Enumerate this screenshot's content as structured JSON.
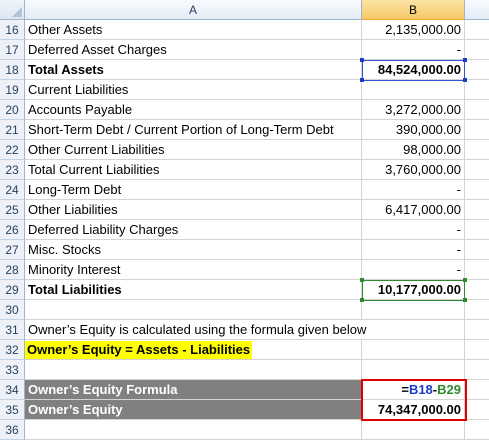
{
  "columns": {
    "a": "A",
    "b": "B"
  },
  "rows": [
    {
      "num": "16",
      "label": "Other Assets",
      "value": "2,135,000.00"
    },
    {
      "num": "17",
      "label": "Deferred Asset Charges",
      "value": "-"
    },
    {
      "num": "18",
      "label": "Total Assets",
      "value": "84,524,000.00"
    },
    {
      "num": "19",
      "label": "Current Liabilities",
      "value": ""
    },
    {
      "num": "20",
      "label": "Accounts Payable",
      "value": "3,272,000.00"
    },
    {
      "num": "21",
      "label": "Short-Term Debt / Current Portion of Long-Term Debt",
      "value": "390,000.00"
    },
    {
      "num": "22",
      "label": "Other Current Liabilities",
      "value": "98,000.00"
    },
    {
      "num": "23",
      "label": "Total Current Liabilities",
      "value": "3,760,000.00"
    },
    {
      "num": "24",
      "label": "Long-Term Debt",
      "value": "-"
    },
    {
      "num": "25",
      "label": "Other Liabilities",
      "value": "6,417,000.00"
    },
    {
      "num": "26",
      "label": "Deferred Liability Charges",
      "value": "-"
    },
    {
      "num": "27",
      "label": "Misc. Stocks",
      "value": "-"
    },
    {
      "num": "28",
      "label": "Minority Interest",
      "value": "-"
    },
    {
      "num": "29",
      "label": "Total Liabilities",
      "value": "10,177,000.00"
    },
    {
      "num": "30",
      "label": "",
      "value": ""
    },
    {
      "num": "31",
      "label": "Owner’s Equity is calculated using the formula given below",
      "value": ""
    },
    {
      "num": "32",
      "label": "Owner’s Equity = Assets -  Liabilities",
      "value": ""
    },
    {
      "num": "33",
      "label": "",
      "value": ""
    },
    {
      "num": "34",
      "label": "Owner’s Equity Formula",
      "formula": {
        "eq": "=",
        "ref1": "B18",
        "op": "-",
        "ref2": "B29"
      }
    },
    {
      "num": "35",
      "label": "Owner’s Equity",
      "value": "74,347,000.00"
    },
    {
      "num": "36",
      "label": "",
      "value": ""
    }
  ],
  "colors": {
    "ref1": "#1f3dc9",
    "ref2": "#2f8a2f",
    "highlight": "#ffff00",
    "result_box": "#e00000",
    "grey_fill": "#808080"
  }
}
